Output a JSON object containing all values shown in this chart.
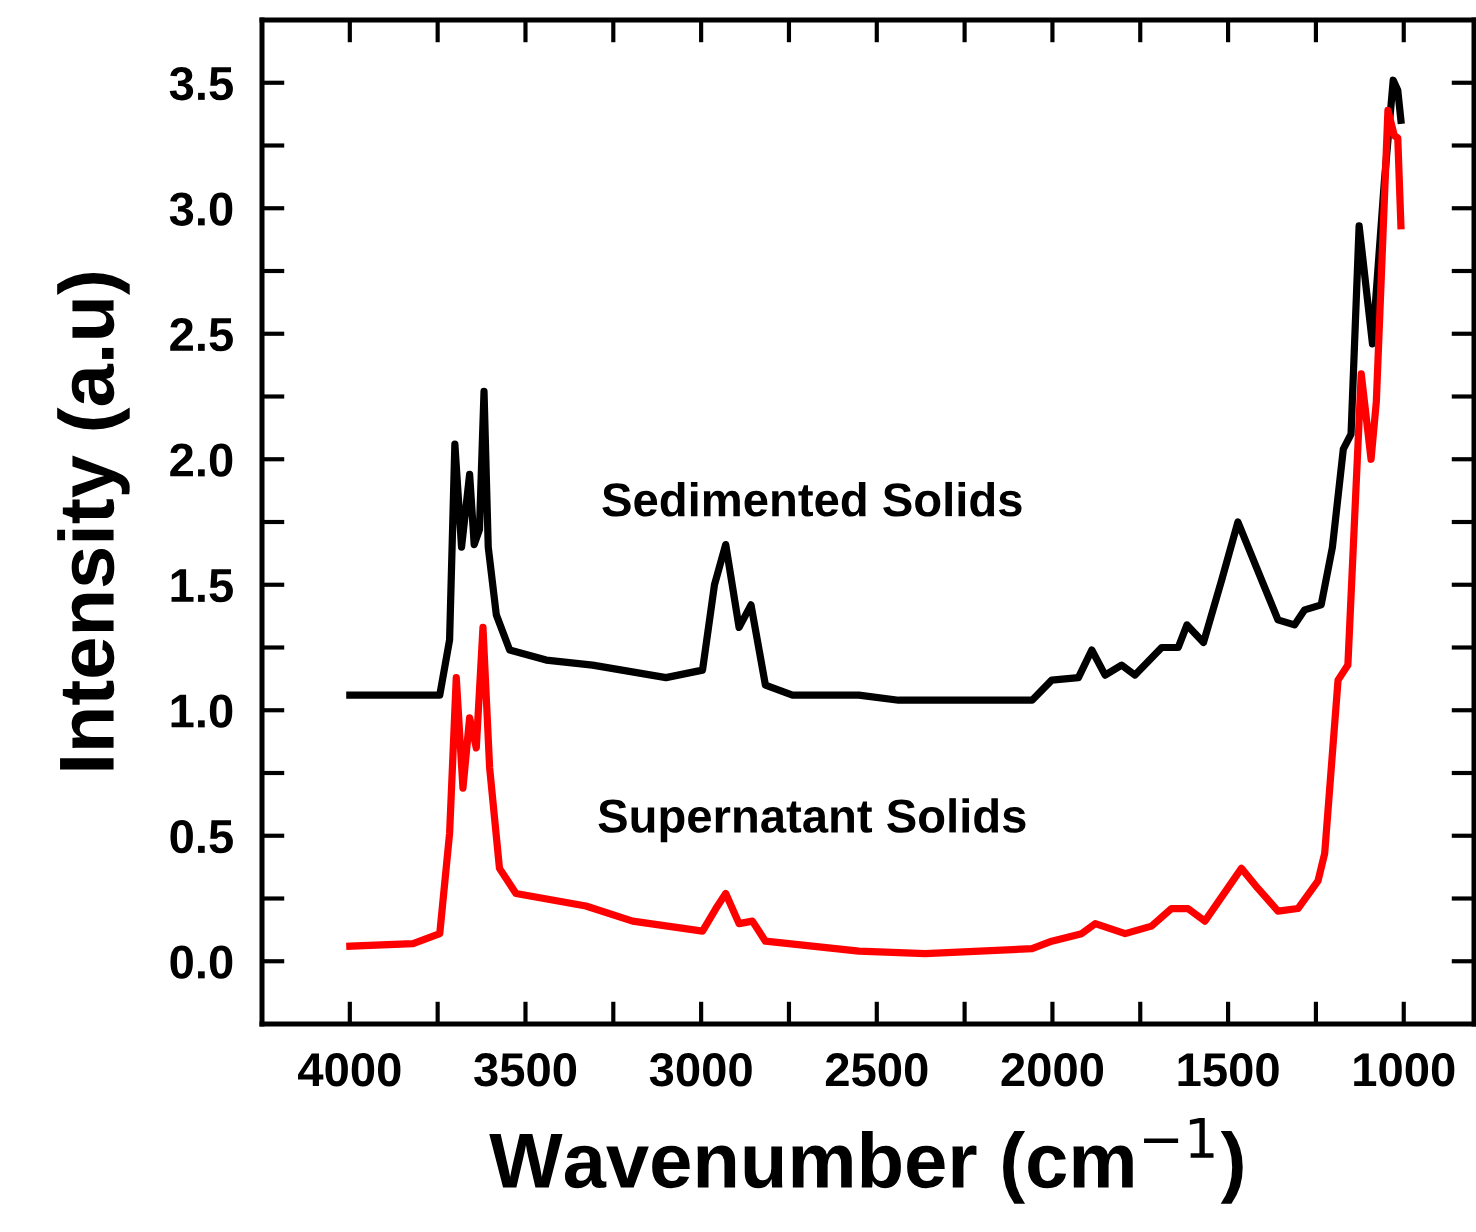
{
  "chart_data": {
    "type": "line",
    "xlabel": "Wavenumber (cm$^{−1}$)",
    "ylabel": "Intensity (a.u)",
    "xlim": [
      4250,
      800
    ],
    "ylim": [
      -0.25,
      3.75
    ],
    "xticks": [
      {
        "value": 4000,
        "label": "4000"
      },
      {
        "value": 3750,
        "label": null
      },
      {
        "value": 3500,
        "label": "3500"
      },
      {
        "value": 3250,
        "label": null
      },
      {
        "value": 3000,
        "label": "3000"
      },
      {
        "value": 2750,
        "label": null
      },
      {
        "value": 2500,
        "label": "2500"
      },
      {
        "value": 2250,
        "label": null
      },
      {
        "value": 2000,
        "label": "2000"
      },
      {
        "value": 1750,
        "label": null
      },
      {
        "value": 1500,
        "label": "1500"
      },
      {
        "value": 1250,
        "label": null
      },
      {
        "value": 1000,
        "label": "1000"
      }
    ],
    "yticks": [
      {
        "value": 0,
        "label": "0.0"
      },
      {
        "value": 0.25,
        "label": null
      },
      {
        "value": 0.5,
        "label": "0.5"
      },
      {
        "value": 0.75,
        "label": null
      },
      {
        "value": 1.0,
        "label": "1.0"
      },
      {
        "value": 1.25,
        "label": null
      },
      {
        "value": 1.5,
        "label": "1.5"
      },
      {
        "value": 1.75,
        "label": null
      },
      {
        "value": 2.0,
        "label": "2.0"
      },
      {
        "value": 2.25,
        "label": null
      },
      {
        "value": 2.5,
        "label": "2.5"
      },
      {
        "value": 2.75,
        "label": null
      },
      {
        "value": 3.0,
        "label": "3.0"
      },
      {
        "value": 3.25,
        "label": null
      },
      {
        "value": 3.5,
        "label": "3.5"
      }
    ],
    "grid": false,
    "legend": false,
    "marker": "none",
    "line_style": "solid",
    "series": [
      {
        "color": "#000000",
        "x": [
          4000,
          3744,
          3716,
          3701,
          3682,
          3659,
          3646,
          3631,
          3618,
          3606,
          3583,
          3545,
          3441,
          3309,
          3100,
          2996,
          2962,
          2930,
          2892,
          2858,
          2817,
          2740,
          2551,
          2438,
          2058,
          2002,
          1926,
          1888,
          1850,
          1803,
          1765,
          1689,
          1642,
          1617,
          1570,
          1518,
          1472,
          1396,
          1358,
          1311,
          1282,
          1235,
          1203,
          1172,
          1150,
          1127,
          1089,
          1055,
          1030,
          1017,
          1008
        ],
        "values": [
          1.06,
          1.06,
          1.28,
          2.06,
          1.65,
          1.94,
          1.66,
          1.72,
          2.27,
          1.65,
          1.38,
          1.24,
          1.2,
          1.18,
          1.13,
          1.16,
          1.5,
          1.66,
          1.33,
          1.42,
          1.1,
          1.06,
          1.06,
          1.04,
          1.04,
          1.12,
          1.13,
          1.24,
          1.14,
          1.18,
          1.14,
          1.25,
          1.25,
          1.34,
          1.27,
          1.52,
          1.75,
          1.49,
          1.36,
          1.34,
          1.4,
          1.42,
          1.65,
          2.04,
          2.1,
          2.93,
          2.46,
          3.11,
          3.51,
          3.47,
          3.35
        ]
      },
      {
        "color": "#ff0000",
        "x": [
          4000,
          3820,
          3744,
          3716,
          3697,
          3678,
          3659,
          3640,
          3621,
          3602,
          3574,
          3527,
          3328,
          3195,
          2996,
          2958,
          2930,
          2892,
          2854,
          2817,
          2551,
          2362,
          2058,
          2002,
          1917,
          1878,
          1793,
          1718,
          1661,
          1614,
          1566,
          1462,
          1415,
          1358,
          1301,
          1244,
          1225,
          1187,
          1159,
          1121,
          1093,
          1078,
          1045,
          1027,
          1017,
          1008
        ],
        "values": [
          0.06,
          0.07,
          0.11,
          0.51,
          1.13,
          0.69,
          0.97,
          0.85,
          1.33,
          0.77,
          0.37,
          0.27,
          0.22,
          0.16,
          0.12,
          0.21,
          0.27,
          0.15,
          0.16,
          0.08,
          0.04,
          0.03,
          0.05,
          0.08,
          0.11,
          0.15,
          0.11,
          0.14,
          0.21,
          0.21,
          0.16,
          0.37,
          0.29,
          0.2,
          0.21,
          0.32,
          0.43,
          1.12,
          1.18,
          2.34,
          2.0,
          2.23,
          3.39,
          3.29,
          3.28,
          2.93
        ]
      }
    ],
    "annotations": [
      "Sedimented Solids",
      "Supernatant Solids"
    ]
  }
}
